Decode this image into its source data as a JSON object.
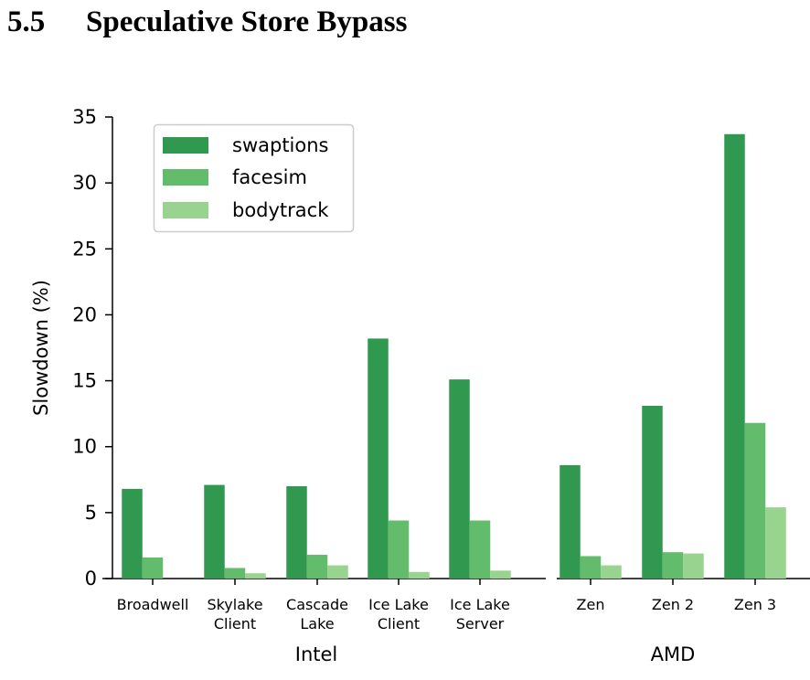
{
  "heading": {
    "number": "5.5",
    "title": "Speculative Store Bypass"
  },
  "chart_data": {
    "type": "bar",
    "title": "",
    "ylabel": "Slowdown (%)",
    "ylim": [
      0,
      35
    ],
    "yticks": [
      0,
      5,
      10,
      15,
      20,
      25,
      30,
      35
    ],
    "grid": false,
    "legend": "top-left",
    "colors": {
      "swaptions": "#31994f",
      "facesim": "#62bc6b",
      "bodytrack": "#98d48f"
    },
    "groups": [
      {
        "label": "Intel",
        "categories": [
          [
            "Broadwell"
          ],
          [
            "Skylake",
            "Client"
          ],
          [
            "Cascade",
            "Lake"
          ],
          [
            "Ice Lake",
            "Client"
          ],
          [
            "Ice Lake",
            "Server"
          ]
        ],
        "series": [
          {
            "name": "swaptions",
            "values": [
              6.8,
              7.1,
              7.0,
              18.2,
              15.1
            ]
          },
          {
            "name": "facesim",
            "values": [
              1.6,
              0.8,
              1.8,
              4.4,
              4.4
            ]
          },
          {
            "name": "bodytrack",
            "values": [
              0.0,
              0.4,
              1.0,
              0.5,
              0.6
            ]
          }
        ]
      },
      {
        "label": "AMD",
        "categories": [
          [
            "Zen"
          ],
          [
            "Zen 2"
          ],
          [
            "Zen 3"
          ]
        ],
        "series": [
          {
            "name": "swaptions",
            "values": [
              8.6,
              13.1,
              33.7
            ]
          },
          {
            "name": "facesim",
            "values": [
              1.7,
              2.0,
              11.8
            ]
          },
          {
            "name": "bodytrack",
            "values": [
              1.0,
              1.9,
              5.4
            ]
          }
        ]
      }
    ]
  }
}
